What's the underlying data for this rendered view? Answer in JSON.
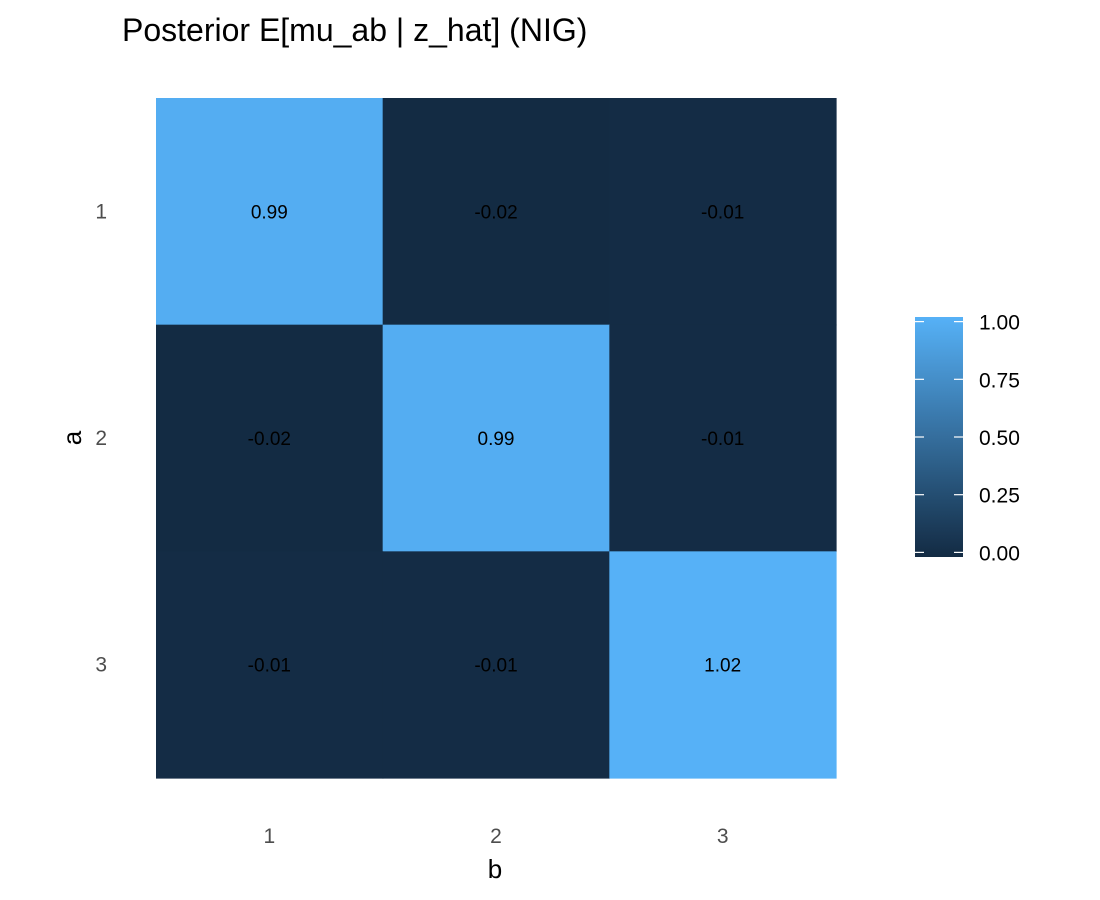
{
  "chart_data": {
    "type": "heatmap",
    "title": "Posterior E[mu_ab | z_hat] (NIG)",
    "xlabel": "b",
    "ylabel": "a",
    "x_categories": [
      "1",
      "2",
      "3"
    ],
    "y_categories": [
      "1",
      "2",
      "3"
    ],
    "values": [
      [
        0.99,
        -0.02,
        -0.01
      ],
      [
        -0.02,
        0.99,
        -0.01
      ],
      [
        -0.01,
        -0.01,
        1.02
      ]
    ],
    "cell_labels": [
      [
        "0.99",
        "-0.02",
        "-0.01"
      ],
      [
        "-0.02",
        "0.99",
        "-0.01"
      ],
      [
        "-0.01",
        "-0.01",
        "1.02"
      ]
    ],
    "color_scale": {
      "low_color": "#132B43",
      "high_color": "#56B1F7",
      "range": [
        -0.02,
        1.02
      ],
      "breaks": [
        0.0,
        0.25,
        0.5,
        0.75,
        1.0
      ],
      "break_labels": [
        "0.00",
        "0.25",
        "0.50",
        "0.75",
        "1.00"
      ]
    },
    "legend_placement": "right",
    "grid": false
  }
}
